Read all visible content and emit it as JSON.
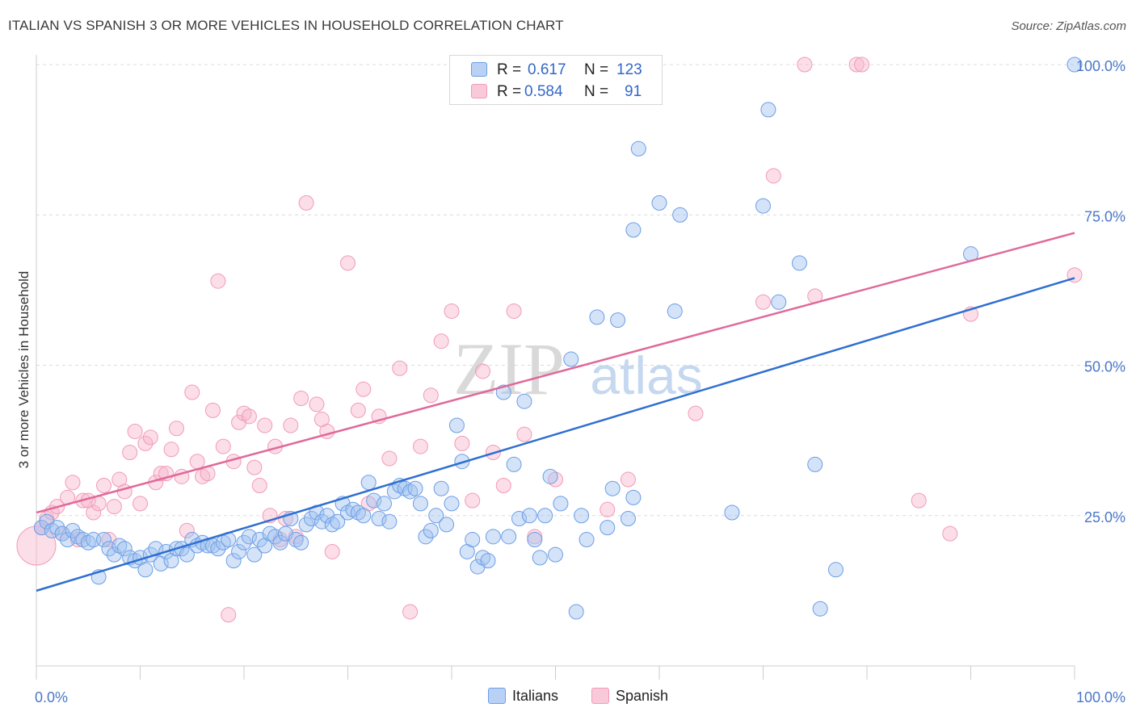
{
  "title": "ITALIAN VS SPANISH 3 OR MORE VEHICLES IN HOUSEHOLD CORRELATION CHART",
  "source": "Source: ZipAtlas.com",
  "watermark": {
    "zip": "ZIP",
    "atlas": "atlas"
  },
  "legend": {
    "rows": [
      {
        "r_label": "R =",
        "r_value": "0.617",
        "n_label": "N =",
        "n_value": "123"
      },
      {
        "r_label": "R =",
        "r_value": "0.584",
        "n_label": "N =",
        "n_value": "91"
      }
    ]
  },
  "bottom_legend": {
    "italians": "Italians",
    "spanish": "Spanish"
  },
  "chart_data": {
    "type": "scatter",
    "title": "ITALIAN VS SPANISH 3 OR MORE VEHICLES IN HOUSEHOLD CORRELATION CHART",
    "xlabel": "",
    "ylabel": "3 or more Vehicles in Household",
    "xlim": [
      0,
      100
    ],
    "ylim": [
      0,
      100
    ],
    "x_tick_labels": [
      "0.0%",
      "100.0%"
    ],
    "y_tick_labels": [
      "25.0%",
      "50.0%",
      "75.0%",
      "100.0%"
    ],
    "y_ticks": [
      25,
      50,
      75,
      100
    ],
    "grid": true,
    "legend_position": "top-center",
    "colors": {
      "italians": "#6b9ee6",
      "spanish": "#f29ab8",
      "italians_line": "#2f6fd1",
      "spanish_line": "#e0699a"
    },
    "series": [
      {
        "name": "Italians",
        "r": 0.617,
        "n": 123,
        "trend": {
          "x": [
            0,
            100
          ],
          "y": [
            12.5,
            64.5
          ]
        },
        "points": [
          [
            0.5,
            23
          ],
          [
            1,
            24
          ],
          [
            1.5,
            22.5
          ],
          [
            2,
            23
          ],
          [
            2.5,
            22
          ],
          [
            3,
            21
          ],
          [
            3.5,
            22.5
          ],
          [
            4,
            21.5
          ],
          [
            4.5,
            21
          ],
          [
            5,
            20.5
          ],
          [
            5.5,
            21
          ],
          [
            6,
            14.8
          ],
          [
            6.5,
            21
          ],
          [
            7,
            19.5
          ],
          [
            7.5,
            18.5
          ],
          [
            8,
            20
          ],
          [
            8.5,
            19.5
          ],
          [
            9,
            18
          ],
          [
            9.5,
            17.5
          ],
          [
            10,
            18
          ],
          [
            10.5,
            16
          ],
          [
            11,
            18.5
          ],
          [
            11.5,
            19.5
          ],
          [
            12,
            17
          ],
          [
            12.5,
            19
          ],
          [
            13,
            17.5
          ],
          [
            13.5,
            19.5
          ],
          [
            14,
            19.5
          ],
          [
            14.5,
            18.5
          ],
          [
            15,
            21
          ],
          [
            15.5,
            20
          ],
          [
            16,
            20.5
          ],
          [
            16.5,
            20
          ],
          [
            17,
            20
          ],
          [
            17.5,
            19.5
          ],
          [
            18,
            20.5
          ],
          [
            18.5,
            21
          ],
          [
            19,
            17.5
          ],
          [
            19.5,
            19
          ],
          [
            20,
            20.5
          ],
          [
            20.5,
            21.5
          ],
          [
            21,
            18.5
          ],
          [
            21.5,
            21
          ],
          [
            22,
            20
          ],
          [
            22.5,
            22
          ],
          [
            23,
            21.5
          ],
          [
            23.5,
            20.5
          ],
          [
            24,
            22
          ],
          [
            24.5,
            24.5
          ],
          [
            25,
            21
          ],
          [
            25.5,
            20.5
          ],
          [
            26,
            23.5
          ],
          [
            26.5,
            24.5
          ],
          [
            27,
            25.5
          ],
          [
            27.5,
            24
          ],
          [
            28,
            25
          ],
          [
            28.5,
            23.5
          ],
          [
            29,
            24
          ],
          [
            29.5,
            27
          ],
          [
            30,
            25.5
          ],
          [
            30.5,
            26
          ],
          [
            31,
            25.5
          ],
          [
            31.5,
            25
          ],
          [
            32,
            30.5
          ],
          [
            32.5,
            27.5
          ],
          [
            33,
            24.5
          ],
          [
            33.5,
            27
          ],
          [
            34,
            24
          ],
          [
            34.5,
            29
          ],
          [
            35,
            30
          ],
          [
            35.5,
            29.5
          ],
          [
            36,
            29
          ],
          [
            36.5,
            29.5
          ],
          [
            37,
            27
          ],
          [
            37.5,
            21.5
          ],
          [
            38,
            22.5
          ],
          [
            38.5,
            25
          ],
          [
            39,
            29.5
          ],
          [
            39.5,
            23.5
          ],
          [
            40,
            27
          ],
          [
            40.5,
            40
          ],
          [
            41,
            34
          ],
          [
            41.5,
            19
          ],
          [
            42,
            21
          ],
          [
            42.5,
            16.5
          ],
          [
            43,
            18
          ],
          [
            43.5,
            17.5
          ],
          [
            44,
            21.5
          ],
          [
            45,
            45.5
          ],
          [
            45.5,
            21.5
          ],
          [
            46,
            33.5
          ],
          [
            46.5,
            24.5
          ],
          [
            47,
            44
          ],
          [
            47.5,
            25
          ],
          [
            48,
            21
          ],
          [
            48.5,
            18
          ],
          [
            49,
            25
          ],
          [
            49.5,
            31.5
          ],
          [
            50,
            18.5
          ],
          [
            50.5,
            27
          ],
          [
            52,
            9
          ],
          [
            52.5,
            25
          ],
          [
            53,
            21
          ],
          [
            54,
            58
          ],
          [
            51.5,
            51
          ],
          [
            55,
            23
          ],
          [
            55.5,
            29.5
          ],
          [
            56,
            57.5
          ],
          [
            57,
            24.5
          ],
          [
            57.5,
            72.5
          ],
          [
            57.5,
            28
          ],
          [
            58,
            86
          ],
          [
            60,
            77
          ],
          [
            61.5,
            59
          ],
          [
            62,
            75
          ],
          [
            67,
            25.5
          ],
          [
            70.5,
            92.5
          ],
          [
            70,
            76.5
          ],
          [
            71.5,
            60.5
          ],
          [
            73.5,
            67
          ],
          [
            75,
            33.5
          ],
          [
            75.5,
            9.5
          ],
          [
            77,
            16
          ],
          [
            90,
            68.5
          ],
          [
            100,
            100
          ]
        ]
      },
      {
        "name": "Spanish",
        "r": 0.584,
        "n": 91,
        "trend": {
          "x": [
            0,
            100
          ],
          "y": [
            25.5,
            72
          ]
        },
        "points": [
          [
            0,
            20
          ],
          [
            0.5,
            23
          ],
          [
            1,
            24.5
          ],
          [
            1.5,
            25.5
          ],
          [
            2,
            26.5
          ],
          [
            2.5,
            22
          ],
          [
            3,
            28
          ],
          [
            3.5,
            30.5
          ],
          [
            4,
            21
          ],
          [
            4.5,
            27.5
          ],
          [
            5,
            27.5
          ],
          [
            5.5,
            25.5
          ],
          [
            6,
            27
          ],
          [
            6.5,
            30
          ],
          [
            7,
            21
          ],
          [
            7.5,
            26.5
          ],
          [
            8,
            31
          ],
          [
            8.5,
            29
          ],
          [
            9,
            35.5
          ],
          [
            9.5,
            39
          ],
          [
            10,
            27
          ],
          [
            10.5,
            37
          ],
          [
            11,
            38
          ],
          [
            11.5,
            30.5
          ],
          [
            12,
            32
          ],
          [
            12.5,
            32
          ],
          [
            13,
            36
          ],
          [
            13.5,
            39.5
          ],
          [
            14,
            31.5
          ],
          [
            14.5,
            22.5
          ],
          [
            15,
            45.5
          ],
          [
            15.5,
            34
          ],
          [
            16,
            31.5
          ],
          [
            16.5,
            32
          ],
          [
            17,
            42.5
          ],
          [
            17.5,
            64
          ],
          [
            18,
            36.5
          ],
          [
            18.5,
            8.5
          ],
          [
            19,
            34
          ],
          [
            19.5,
            40.5
          ],
          [
            20,
            42
          ],
          [
            20.5,
            41.5
          ],
          [
            21,
            33
          ],
          [
            21.5,
            30
          ],
          [
            22,
            40
          ],
          [
            22.5,
            25
          ],
          [
            23,
            36.5
          ],
          [
            23.5,
            21
          ],
          [
            24,
            24.5
          ],
          [
            24.5,
            40
          ],
          [
            25,
            21.5
          ],
          [
            25.5,
            44.5
          ],
          [
            26,
            77
          ],
          [
            27,
            43.5
          ],
          [
            27.5,
            41
          ],
          [
            28,
            39
          ],
          [
            28.5,
            19
          ],
          [
            30,
            67
          ],
          [
            31,
            42.5
          ],
          [
            31.5,
            46
          ],
          [
            32,
            27
          ],
          [
            33,
            41.5
          ],
          [
            34,
            34.5
          ],
          [
            35,
            49.5
          ],
          [
            36,
            9
          ],
          [
            37,
            36.5
          ],
          [
            38,
            45
          ],
          [
            39,
            54
          ],
          [
            40,
            59
          ],
          [
            41,
            37
          ],
          [
            42,
            27.5
          ],
          [
            43,
            49
          ],
          [
            44,
            35.5
          ],
          [
            45,
            30
          ],
          [
            46,
            59
          ],
          [
            47,
            38.5
          ],
          [
            48,
            21.5
          ],
          [
            50,
            31
          ],
          [
            55,
            26
          ],
          [
            63.5,
            42
          ],
          [
            70,
            60.5
          ],
          [
            71,
            81.5
          ],
          [
            74,
            100
          ],
          [
            75,
            61.5
          ],
          [
            79,
            100
          ],
          [
            85,
            27.5
          ],
          [
            88,
            22
          ],
          [
            90,
            58.5
          ],
          [
            100,
            65
          ],
          [
            79.5,
            100
          ],
          [
            57,
            31
          ]
        ]
      }
    ]
  }
}
